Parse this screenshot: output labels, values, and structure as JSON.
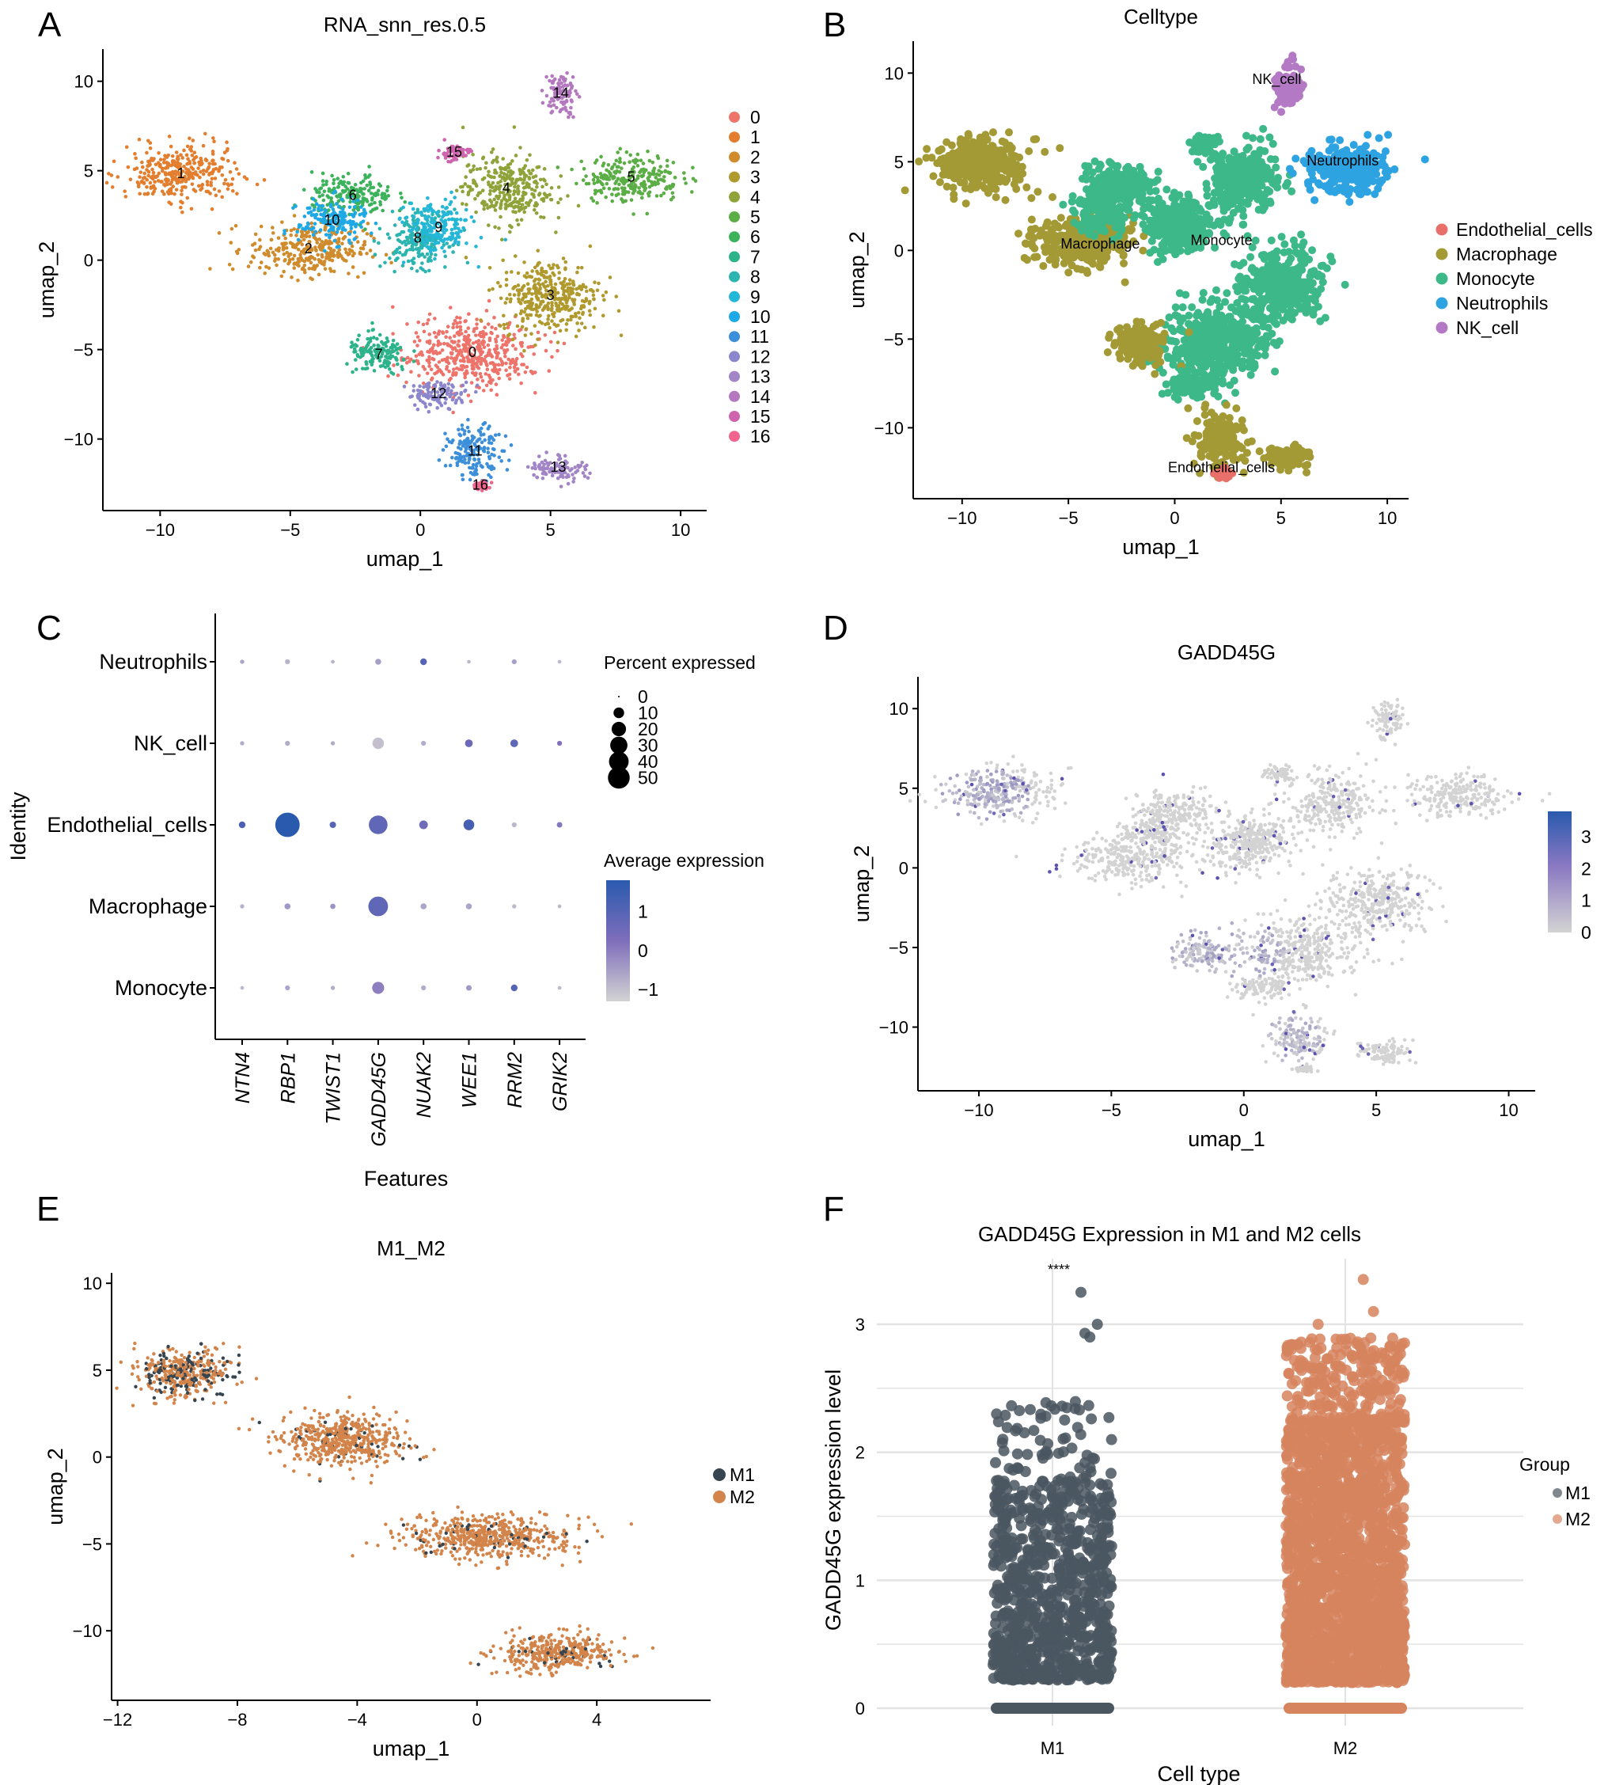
{
  "figure": {
    "panel_letters": [
      "A",
      "B",
      "C",
      "D",
      "E",
      "F"
    ]
  },
  "chart_data": [
    {
      "id": "A",
      "type": "scatter",
      "title": "RNA_snn_res.0.5",
      "xlabel": "umap_1",
      "ylabel": "umap_2",
      "xlim": [
        -12.2,
        11
      ],
      "ylim": [
        -14,
        11.8
      ],
      "xticks": [
        -10,
        -5,
        0,
        5,
        10
      ],
      "yticks": [
        -10,
        -5,
        0,
        5,
        10
      ],
      "xtick_labels": [
        "−10",
        "−5",
        "0",
        "5",
        "10"
      ],
      "ytick_labels": [
        "−10",
        "−5",
        "0",
        "5",
        "10"
      ],
      "grid": false,
      "legend_position": "right",
      "legend": [
        {
          "label": "0",
          "color": "#F8766D"
        },
        {
          "label": "1",
          "color": "#E58700"
        },
        {
          "label": "2",
          "color": "#C99800"
        },
        {
          "label": "3",
          "color": "#A3A500"
        },
        {
          "label": "4",
          "color": "#6BB100"
        },
        {
          "label": "5",
          "color": "#00BA38"
        },
        {
          "label": "6",
          "color": "#00BF7D"
        },
        {
          "label": "7",
          "color": "#00C0AF"
        },
        {
          "label": "8",
          "color": "#00BCD8"
        },
        {
          "label": "9",
          "color": "#00B0F6"
        },
        {
          "label": "10",
          "color": "#619CFF"
        },
        {
          "label": "11",
          "color": "#B983FF"
        },
        {
          "label": "12",
          "color": "#E76BF3"
        },
        {
          "label": "13",
          "color": "#FD61D1"
        },
        {
          "label": "14",
          "color": "#FF67A4"
        },
        {
          "label": "15",
          "color": "#F5649A"
        },
        {
          "label": "16",
          "color": "#FF6C91"
        }
      ],
      "display_colors": [
        "#ED736B",
        "#E37E2E",
        "#CF8B2C",
        "#B09A2E",
        "#8FA33A",
        "#5AAE45",
        "#3CB25B",
        "#2DB38A",
        "#2BB4B0",
        "#25B7D8",
        "#1FA8E6",
        "#3C8FD8",
        "#8C86CC",
        "#A285C6",
        "#B378BE",
        "#CF64AE",
        "#F0658E"
      ],
      "clusters": [
        {
          "label": "0",
          "center": [
            2.0,
            -5.2
          ],
          "spread": [
            2.0,
            1.7
          ]
        },
        {
          "label": "1",
          "center": [
            -9.2,
            4.8
          ],
          "spread": [
            1.8,
            1.3
          ]
        },
        {
          "label": "2",
          "center": [
            -4.3,
            0.6
          ],
          "spread": [
            1.9,
            1.2
          ]
        },
        {
          "label": "3",
          "center": [
            5.0,
            -2.0
          ],
          "spread": [
            1.6,
            1.7
          ]
        },
        {
          "label": "4",
          "center": [
            3.3,
            4.0
          ],
          "spread": [
            1.4,
            1.6
          ]
        },
        {
          "label": "5",
          "center": [
            8.1,
            4.6
          ],
          "spread": [
            1.6,
            1.1
          ]
        },
        {
          "label": "6",
          "center": [
            -2.6,
            3.6
          ],
          "spread": [
            1.3,
            1.0
          ]
        },
        {
          "label": "7",
          "center": [
            -1.6,
            -5.3
          ],
          "spread": [
            1.0,
            0.9
          ]
        },
        {
          "label": "8",
          "center": [
            -0.1,
            1.2
          ],
          "spread": [
            1.0,
            1.3
          ]
        },
        {
          "label": "9",
          "center": [
            0.7,
            1.8
          ],
          "spread": [
            1.0,
            1.2
          ]
        },
        {
          "label": "10",
          "center": [
            -3.4,
            2.2
          ],
          "spread": [
            1.1,
            1.0
          ]
        },
        {
          "label": "11",
          "center": [
            2.1,
            -10.7
          ],
          "spread": [
            0.9,
            1.2
          ]
        },
        {
          "label": "12",
          "center": [
            0.7,
            -7.5
          ],
          "spread": [
            1.0,
            0.6
          ]
        },
        {
          "label": "13",
          "center": [
            5.3,
            -11.6
          ],
          "spread": [
            0.9,
            0.6
          ]
        },
        {
          "label": "14",
          "center": [
            5.4,
            9.3
          ],
          "spread": [
            0.5,
            1.0
          ]
        },
        {
          "label": "15",
          "center": [
            1.3,
            6.0
          ],
          "spread": [
            0.5,
            0.4
          ]
        },
        {
          "label": "16",
          "center": [
            2.3,
            -12.6
          ],
          "spread": [
            0.3,
            0.2
          ]
        }
      ]
    },
    {
      "id": "B",
      "type": "scatter",
      "title": "Celltype",
      "xlabel": "umap_1",
      "ylabel": "umap_2",
      "xlim": [
        -12.3,
        11
      ],
      "ylim": [
        -14,
        11.8
      ],
      "xticks": [
        -10,
        -5,
        0,
        5,
        10
      ],
      "yticks": [
        -10,
        -5,
        0,
        5,
        10
      ],
      "xtick_labels": [
        "−10",
        "−5",
        "0",
        "5",
        "10"
      ],
      "ytick_labels": [
        "−10",
        "−5",
        "0",
        "5",
        "10"
      ],
      "grid": false,
      "legend_position": "right",
      "legend": [
        {
          "label": "Endothelial_cells",
          "color": "#F8766D"
        },
        {
          "label": "Macrophage",
          "color": "#A3A500"
        },
        {
          "label": "Monocyte",
          "color": "#00BF7D"
        },
        {
          "label": "Neutrophils",
          "color": "#00B0F6"
        },
        {
          "label": "NK_cell",
          "color": "#E76BF3"
        }
      ],
      "display_colors": [
        "#E9706A",
        "#A39A36",
        "#3DB889",
        "#2EA3E2",
        "#B479C4"
      ],
      "annotations": [
        {
          "text": "NK_cell",
          "x": 4.8,
          "y": 9.4
        },
        {
          "text": "Neutrophils",
          "x": 7.9,
          "y": 4.8
        },
        {
          "text": "Macrophage",
          "x": -3.5,
          "y": 0.1
        },
        {
          "text": "Monocyte",
          "x": 2.2,
          "y": 0.3
        },
        {
          "text": "Endothelial_cells",
          "x": 2.2,
          "y": -12.5
        }
      ]
    },
    {
      "id": "C",
      "type": "scatter",
      "subtype": "dotplot",
      "title": "",
      "xlabel": "Features",
      "ylabel": "Identity",
      "features": [
        "NTN4",
        "RBP1",
        "TWIST1",
        "GADD45G",
        "NUAK2",
        "WEE1",
        "RRM2",
        "GRIK2"
      ],
      "identities": [
        "Neutrophils",
        "NK_cell",
        "Endothelial_cells",
        "Macrophage",
        "Monocyte"
      ],
      "percent_expressed": [
        [
          0.5,
          0.8,
          0.3,
          1.5,
          2.0,
          0.3,
          0.8,
          0.3
        ],
        [
          0.5,
          0.8,
          0.5,
          8.0,
          0.8,
          3.0,
          3.0,
          0.8
        ],
        [
          2.0,
          45.0,
          1.8,
          25.0,
          4.0,
          7.0,
          0.8,
          1.2
        ],
        [
          0.5,
          1.5,
          1.0,
          28.0,
          1.5,
          1.5,
          0.5,
          0.3
        ],
        [
          0.3,
          0.8,
          0.5,
          9.0,
          0.8,
          1.2,
          2.0,
          0.3
        ]
      ],
      "average_expression": [
        [
          -0.6,
          -0.8,
          -0.8,
          -0.5,
          1.0,
          -0.9,
          -0.5,
          -0.9
        ],
        [
          -0.7,
          -0.7,
          -0.7,
          -1.0,
          -0.7,
          0.6,
          0.8,
          0.2
        ],
        [
          1.2,
          1.8,
          1.0,
          0.8,
          0.5,
          1.3,
          -0.9,
          0.1
        ],
        [
          -0.8,
          -0.4,
          -0.3,
          0.8,
          -0.6,
          -0.6,
          -0.9,
          -0.9
        ],
        [
          -0.9,
          -0.6,
          -0.7,
          0.0,
          -0.7,
          -0.4,
          1.0,
          -0.9
        ]
      ],
      "size_legend": {
        "title": "Percent expressed",
        "values": [
          0,
          10,
          20,
          30,
          40,
          50
        ],
        "labels": [
          "0",
          "10",
          "20",
          "30",
          "40",
          "50"
        ]
      },
      "color_legend": {
        "title": "Average expression",
        "range": [
          -1.3,
          1.8
        ],
        "ticks": [
          1,
          0,
          -1
        ],
        "tick_labels": [
          "1",
          "0",
          "−1"
        ],
        "low_color": "#D3D3D3",
        "mid_color": "#7E6EBB",
        "high_color": "#2A5AAE"
      }
    },
    {
      "id": "D",
      "type": "scatter",
      "subtype": "feature_plot",
      "title": "GADD45G",
      "xlabel": "umap_1",
      "ylabel": "umap_2",
      "xlim": [
        -12.3,
        11
      ],
      "ylim": [
        -14,
        12
      ],
      "xticks": [
        -10,
        -5,
        0,
        5,
        10
      ],
      "yticks": [
        -10,
        -5,
        0,
        5,
        10
      ],
      "xtick_labels": [
        "−10",
        "−5",
        "0",
        "5",
        "10"
      ],
      "ytick_labels": [
        "−10",
        "−5",
        "0",
        "5",
        "10"
      ],
      "grid": false,
      "colorbar": {
        "range": [
          0,
          3.8
        ],
        "ticks": [
          0,
          1,
          2,
          3
        ],
        "tick_labels": [
          "0",
          "1",
          "2",
          "3"
        ],
        "low_color": "#D3D3D3",
        "high_color": "#2A5AAE",
        "position": "right"
      },
      "high_expression_regions": [
        {
          "center": [
            -9.8,
            4.5
          ],
          "spread": [
            1.3,
            1.2
          ],
          "level": 1.2
        },
        {
          "center": [
            -1.0,
            -5.2
          ],
          "spread": [
            1.8,
            1.5
          ],
          "level": 1.0
        },
        {
          "center": [
            1.8,
            -10.5
          ],
          "spread": [
            0.8,
            1.2
          ],
          "level": 0.9
        }
      ]
    },
    {
      "id": "E",
      "type": "scatter",
      "title": "M1_M2",
      "xlabel": "umap_1",
      "ylabel": "umap_2",
      "xlim": [
        -12.2,
        7.8
      ],
      "ylim": [
        -14,
        10.6
      ],
      "xticks": [
        -12,
        -8,
        -4,
        0,
        4
      ],
      "yticks": [
        -10,
        -5,
        0,
        5,
        10
      ],
      "xtick_labels": [
        "−12",
        "−8",
        "−4",
        "0",
        "4"
      ],
      "ytick_labels": [
        "−10",
        "−5",
        "0",
        "5",
        "10"
      ],
      "grid": false,
      "legend_position": "right",
      "legend": [
        {
          "label": "M1",
          "color": "#36454F"
        },
        {
          "label": "M2",
          "color": "#D2844A"
        }
      ],
      "regions": [
        {
          "center": [
            -9.8,
            4.8
          ],
          "spread": [
            1.3,
            1.2
          ],
          "m1_fraction": 0.35
        },
        {
          "center": [
            -4.5,
            1.0
          ],
          "spread": [
            1.7,
            1.2
          ],
          "m1_fraction": 0.08
        },
        {
          "center": [
            0.3,
            -4.6
          ],
          "spread": [
            2.3,
            1.0
          ],
          "m1_fraction": 0.07
        },
        {
          "center": [
            2.6,
            -11.3
          ],
          "spread": [
            1.6,
            0.9
          ],
          "m1_fraction": 0.12
        }
      ]
    },
    {
      "id": "F",
      "type": "scatter",
      "subtype": "jitter",
      "title": "GADD45G Expression in M1 and M2 cells",
      "xlabel": "Cell type",
      "ylabel": "GADD45G expression level",
      "categories": [
        "M1",
        "M2"
      ],
      "ylim": [
        -0.2,
        3.5
      ],
      "yticks": [
        0,
        1,
        2,
        3
      ],
      "ytick_labels": [
        "0",
        "1",
        "2",
        "3"
      ],
      "grid": true,
      "significance": "****",
      "legend_title": "Group",
      "legend_position": "right",
      "legend": [
        {
          "label": "M1",
          "color": "#4A5660"
        },
        {
          "label": "M2",
          "color": "#D6845E"
        }
      ],
      "series": [
        {
          "name": "M1",
          "min_nonzero": 0.22,
          "max": 3.25,
          "dense_upper": 1.8,
          "outliers": [
            2.9,
            2.93,
            3.0,
            3.25
          ]
        },
        {
          "name": "M2",
          "min_nonzero": 0.2,
          "max": 3.35,
          "dense_upper": 2.3,
          "outliers": [
            3.0,
            3.1,
            3.35
          ]
        }
      ]
    }
  ]
}
